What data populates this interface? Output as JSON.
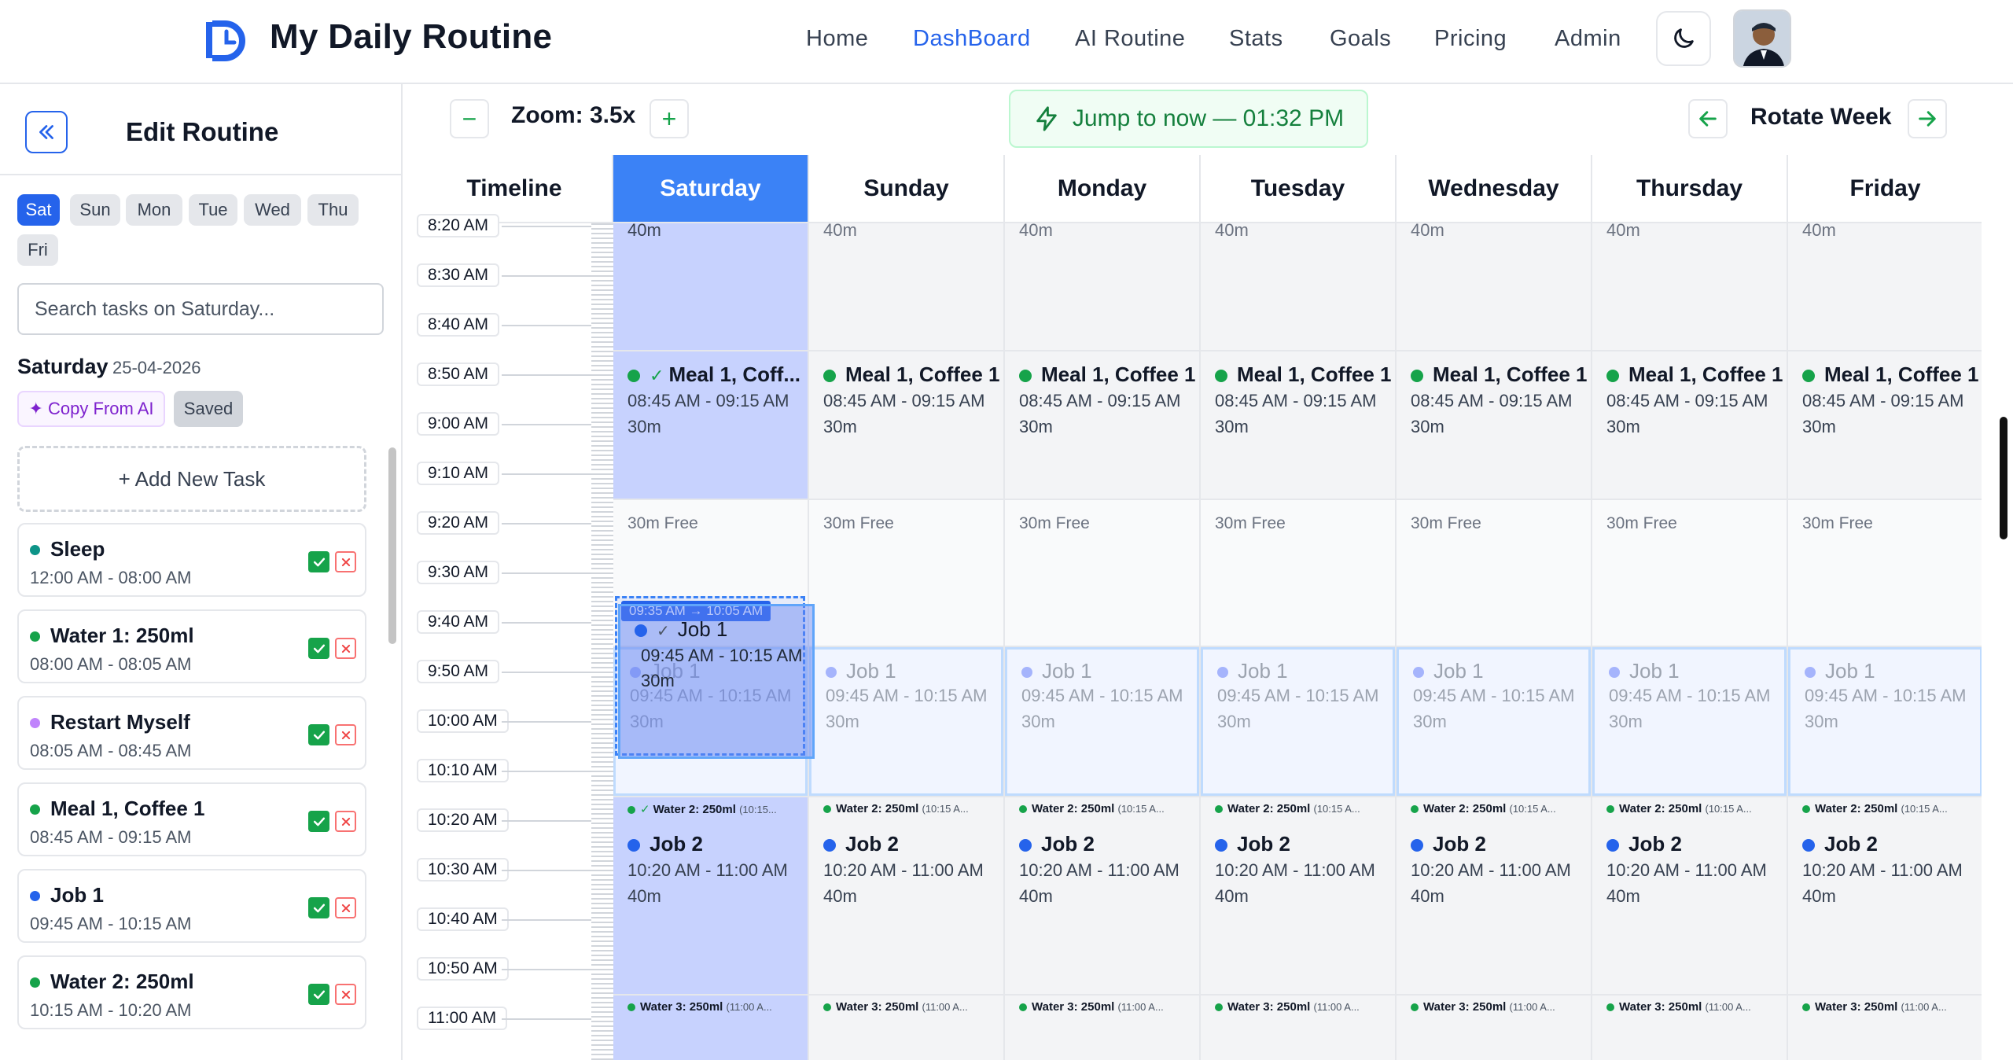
{
  "app": {
    "title": "My Daily Routine",
    "nav": [
      "Home",
      "DashBoard",
      "AI Routine",
      "Stats",
      "Goals",
      "Pricing",
      "Admin"
    ],
    "active_nav": "DashBoard",
    "accent": "#2563eb"
  },
  "icons": {
    "logo": "clock-logo-icon",
    "theme": "moon-icon",
    "collapse": "double-chevron-left-icon",
    "jump": "lightning-icon",
    "prev_week": "arrow-left-icon",
    "next_week": "arrow-right-icon",
    "check": "check-icon",
    "close": "close-icon"
  },
  "sidebar": {
    "title": "Edit Routine",
    "days": [
      "Sat",
      "Sun",
      "Mon",
      "Tue",
      "Wed",
      "Thu",
      "Fri"
    ],
    "active_day": "Sat",
    "search_placeholder": "Search tasks on Saturday...",
    "date_label": "Saturday",
    "date_value": "25-04-2026",
    "copy_ai_label": "✦ Copy From AI",
    "saved_label": "Saved",
    "add_task_label": "+ Add New Task",
    "tasks": [
      {
        "name": "Sleep",
        "time": "12:00 AM - 08:00 AM",
        "color": "#0d9488"
      },
      {
        "name": "Water 1: 250ml",
        "time": "08:00 AM - 08:05 AM",
        "color": "#16a34a"
      },
      {
        "name": "Restart Myself",
        "time": "08:05 AM - 08:45 AM",
        "color": "#c084fc"
      },
      {
        "name": "Meal 1, Coffee 1",
        "time": "08:45 AM - 09:15 AM",
        "color": "#16a34a"
      },
      {
        "name": "Job 1",
        "time": "09:45 AM - 10:15 AM",
        "color": "#2563eb"
      },
      {
        "name": "Water 2: 250ml",
        "time": "10:15 AM - 10:20 AM",
        "color": "#16a34a"
      }
    ]
  },
  "toolbar": {
    "zoom_label": "Zoom: 3.5x",
    "zoom_out": "−",
    "zoom_in": "+",
    "jump_label": "Jump to now — 01:32 PM",
    "rotate_label": "Rotate Week"
  },
  "timeline": {
    "header": "Timeline",
    "times": [
      "8:20 AM",
      "8:30 AM",
      "8:40 AM",
      "8:50 AM",
      "9:00 AM",
      "9:10 AM",
      "9:20 AM",
      "9:30 AM",
      "9:40 AM",
      "9:50 AM",
      "10:00 AM",
      "10:10 AM",
      "10:20 AM",
      "10:30 AM",
      "10:40 AM",
      "10:50 AM",
      "11:00 AM"
    ]
  },
  "days": [
    "Saturday",
    "Sunday",
    "Monday",
    "Tuesday",
    "Wednesday",
    "Thursday",
    "Friday"
  ],
  "active_day": "Saturday",
  "blocks": {
    "prev_duration": "40m",
    "meal": {
      "title": "Meal 1, Coffee 1",
      "title_short": "Meal 1, Coff...",
      "time": "08:45 AM - 09:15 AM",
      "duration": "30m",
      "color": "#16a34a"
    },
    "free": {
      "label": "30m Free"
    },
    "job1": {
      "title": "Job 1",
      "time": "09:45 AM - 10:15 AM",
      "duration": "30m",
      "color": "#2563eb"
    },
    "water2": {
      "title": "Water 2: 250ml",
      "time_short": "(10:15 A...",
      "time_short_sat": "(10:15...",
      "color": "#16a34a"
    },
    "job2": {
      "title": "Job 2",
      "time": "10:20 AM - 11:00 AM",
      "duration": "40m",
      "color": "#2563eb"
    },
    "water3": {
      "title": "Water 3: 250ml",
      "time_short": "(11:00 A...",
      "color": "#16a34a"
    }
  },
  "drag": {
    "label": "09:35 AM → 10:05 AM",
    "title": "Job 1",
    "time": "09:45 AM - 10:15 AM",
    "duration": "30m"
  }
}
